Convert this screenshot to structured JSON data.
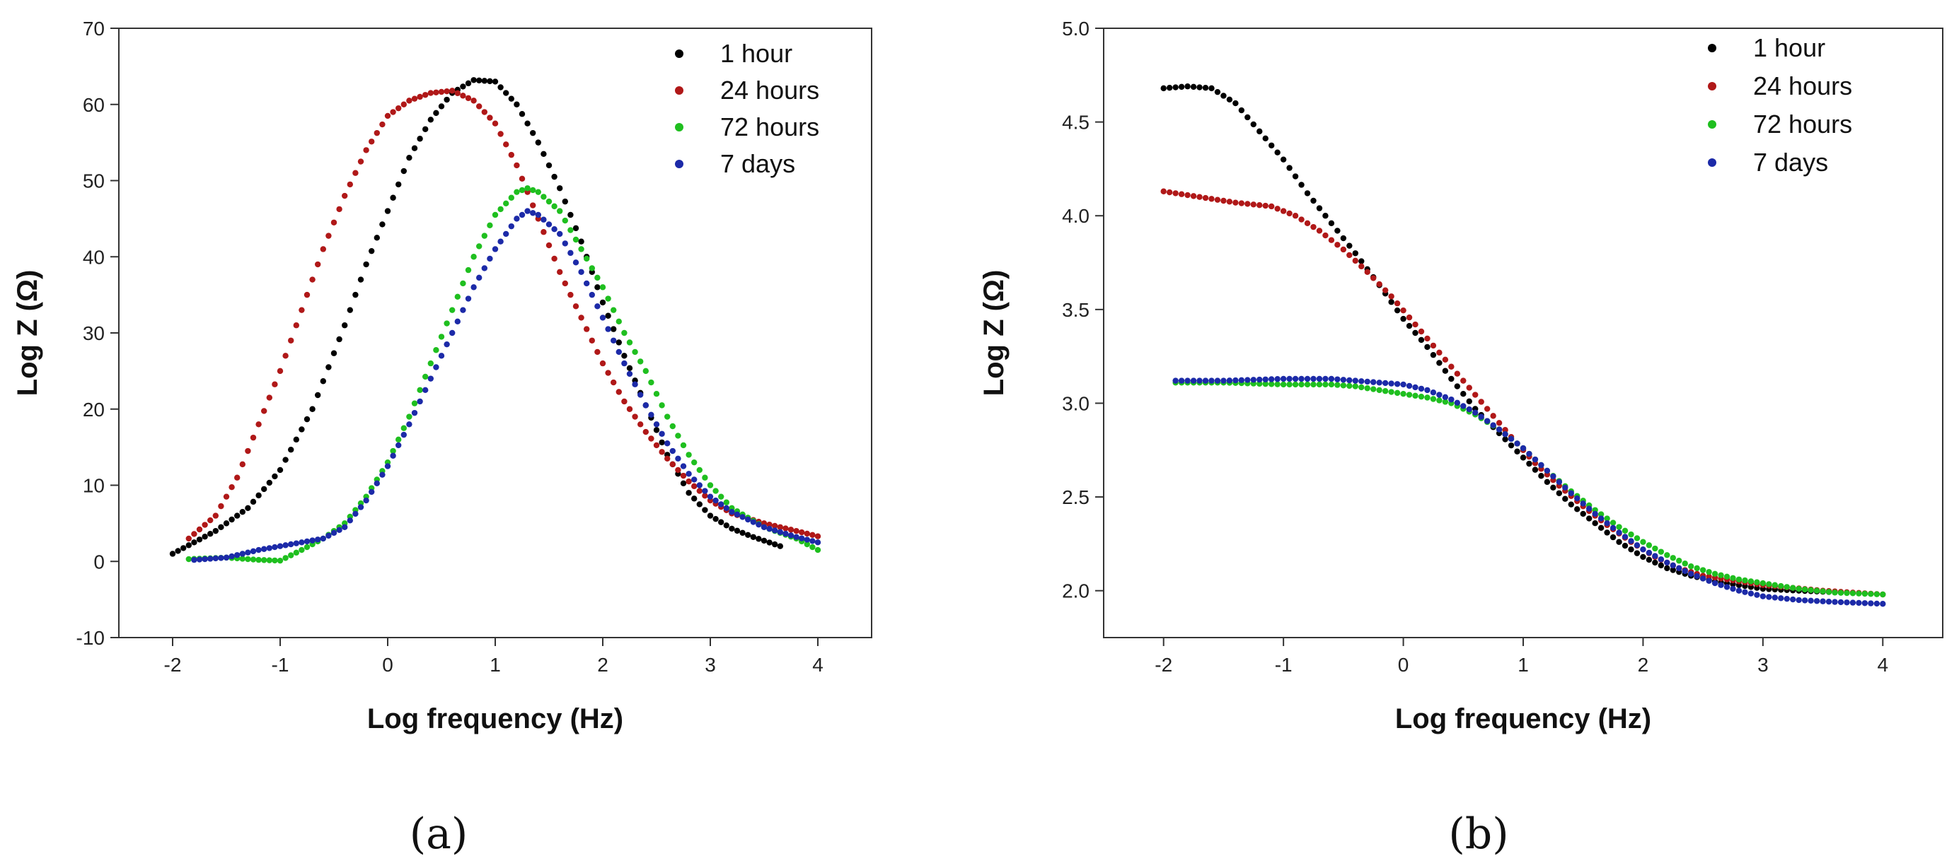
{
  "chart_data": [
    {
      "type": "scatter",
      "panel_label": "(a)",
      "xlabel": "Log frequency (Hz)",
      "ylabel": "Log Z (Ω)",
      "xlim": [
        -2.5,
        4.5
      ],
      "ylim": [
        -10,
        70
      ],
      "xticks": [
        -2,
        -1,
        0,
        1,
        2,
        3,
        4
      ],
      "yticks": [
        -10,
        0,
        10,
        20,
        30,
        40,
        50,
        60,
        70
      ],
      "legend_position": "top-right",
      "series": [
        {
          "name": "1 hour",
          "color": "#000000",
          "x_range": [
            -2.0,
            3.65
          ],
          "points": [
            [
              -2.0,
              1
            ],
            [
              -1.6,
              4
            ],
            [
              -1.3,
              7
            ],
            [
              -1.0,
              12
            ],
            [
              -0.7,
              20
            ],
            [
              -0.4,
              31
            ],
            [
              -0.2,
              39
            ],
            [
              0.0,
              46
            ],
            [
              0.2,
              53
            ],
            [
              0.4,
              58
            ],
            [
              0.6,
              61.5
            ],
            [
              0.8,
              63.2
            ],
            [
              1.0,
              63
            ],
            [
              1.2,
              60
            ],
            [
              1.4,
              55
            ],
            [
              1.6,
              49
            ],
            [
              1.8,
              42
            ],
            [
              2.0,
              34
            ],
            [
              2.2,
              27
            ],
            [
              2.4,
              20.5
            ],
            [
              2.6,
              14
            ],
            [
              2.8,
              9
            ],
            [
              3.0,
              6
            ],
            [
              3.2,
              4.3
            ],
            [
              3.4,
              3.2
            ],
            [
              3.65,
              2
            ]
          ]
        },
        {
          "name": "24 hours",
          "color": "#b01818",
          "x_range": [
            -1.85,
            4.0
          ],
          "points": [
            [
              -1.85,
              3
            ],
            [
              -1.6,
              6
            ],
            [
              -1.4,
              11
            ],
            [
              -1.2,
              18
            ],
            [
              -1.0,
              25
            ],
            [
              -0.8,
              33
            ],
            [
              -0.6,
              41
            ],
            [
              -0.4,
              48
            ],
            [
              -0.2,
              54
            ],
            [
              0.0,
              58.5
            ],
            [
              0.2,
              60.5
            ],
            [
              0.4,
              61.5
            ],
            [
              0.6,
              61.8
            ],
            [
              0.8,
              60.5
            ],
            [
              1.0,
              57.5
            ],
            [
              1.2,
              52
            ],
            [
              1.4,
              45
            ],
            [
              1.6,
              38
            ],
            [
              1.8,
              32
            ],
            [
              2.0,
              26
            ],
            [
              2.2,
              21
            ],
            [
              2.4,
              17
            ],
            [
              2.6,
              13.5
            ],
            [
              2.8,
              10.5
            ],
            [
              3.0,
              8
            ],
            [
              3.2,
              6.3
            ],
            [
              3.5,
              5
            ],
            [
              3.8,
              4
            ],
            [
              4.0,
              3.3
            ]
          ]
        },
        {
          "name": "72 hours",
          "color": "#1fbf1f",
          "x_range": [
            -1.85,
            4.0
          ],
          "points": [
            [
              -1.85,
              0.3
            ],
            [
              -1.5,
              0.5
            ],
            [
              -1.2,
              0.2
            ],
            [
              -1.0,
              0.1
            ],
            [
              -0.8,
              1.5
            ],
            [
              -0.6,
              3
            ],
            [
              -0.4,
              5
            ],
            [
              -0.2,
              8.5
            ],
            [
              0.0,
              13
            ],
            [
              0.2,
              19
            ],
            [
              0.4,
              26
            ],
            [
              0.6,
              33
            ],
            [
              0.8,
              40
            ],
            [
              1.0,
              45.5
            ],
            [
              1.2,
              48.5
            ],
            [
              1.3,
              49
            ],
            [
              1.4,
              48.5
            ],
            [
              1.6,
              46
            ],
            [
              1.8,
              41
            ],
            [
              2.0,
              36
            ],
            [
              2.2,
              30
            ],
            [
              2.4,
              25
            ],
            [
              2.6,
              19
            ],
            [
              2.8,
              14
            ],
            [
              3.0,
              10
            ],
            [
              3.2,
              7
            ],
            [
              3.5,
              4.5
            ],
            [
              3.8,
              3
            ],
            [
              4.0,
              1.5
            ]
          ]
        },
        {
          "name": "7 days",
          "color": "#1c2aa8",
          "x_range": [
            -1.8,
            4.0
          ],
          "points": [
            [
              -1.8,
              0.2
            ],
            [
              -1.5,
              0.5
            ],
            [
              -1.2,
              1.5
            ],
            [
              -1.0,
              2
            ],
            [
              -0.8,
              2.5
            ],
            [
              -0.6,
              3
            ],
            [
              -0.4,
              4.5
            ],
            [
              -0.2,
              8
            ],
            [
              0.0,
              12.5
            ],
            [
              0.2,
              18
            ],
            [
              0.4,
              24
            ],
            [
              0.6,
              30
            ],
            [
              0.8,
              36
            ],
            [
              1.0,
              41
            ],
            [
              1.2,
              45
            ],
            [
              1.3,
              46
            ],
            [
              1.4,
              45.5
            ],
            [
              1.6,
              43
            ],
            [
              1.8,
              38
            ],
            [
              2.0,
              32
            ],
            [
              2.2,
              26
            ],
            [
              2.4,
              20.5
            ],
            [
              2.6,
              15.5
            ],
            [
              2.8,
              11.5
            ],
            [
              3.0,
              8.5
            ],
            [
              3.2,
              6.5
            ],
            [
              3.5,
              4.5
            ],
            [
              3.8,
              3.2
            ],
            [
              4.0,
              2.5
            ]
          ]
        }
      ]
    },
    {
      "type": "scatter",
      "panel_label": "(b)",
      "xlabel": "Log frequency (Hz)",
      "ylabel": "Log Z (Ω)",
      "xlim": [
        -2.5,
        4.5
      ],
      "ylim": [
        1.75,
        5.0
      ],
      "xticks": [
        -2,
        -1,
        0,
        1,
        2,
        3,
        4
      ],
      "yticks": [
        2.0,
        2.5,
        3.0,
        3.5,
        4.0,
        4.5,
        5.0
      ],
      "tick_decimals": 1,
      "legend_position": "top-right",
      "series": [
        {
          "name": "1 hour",
          "color": "#000000",
          "x_range": [
            -2.0,
            3.65
          ],
          "points": [
            [
              -2.0,
              4.68
            ],
            [
              -1.8,
              4.69
            ],
            [
              -1.6,
              4.68
            ],
            [
              -1.4,
              4.6
            ],
            [
              -1.2,
              4.45
            ],
            [
              -1.0,
              4.3
            ],
            [
              -0.8,
              4.12
            ],
            [
              -0.6,
              3.96
            ],
            [
              -0.4,
              3.8
            ],
            [
              -0.2,
              3.63
            ],
            [
              0.0,
              3.45
            ],
            [
              0.2,
              3.3
            ],
            [
              0.4,
              3.13
            ],
            [
              0.6,
              2.97
            ],
            [
              0.8,
              2.84
            ],
            [
              1.0,
              2.71
            ],
            [
              1.2,
              2.58
            ],
            [
              1.4,
              2.46
            ],
            [
              1.6,
              2.36
            ],
            [
              1.8,
              2.26
            ],
            [
              2.0,
              2.18
            ],
            [
              2.2,
              2.12
            ],
            [
              2.4,
              2.08
            ],
            [
              2.6,
              2.05
            ],
            [
              2.8,
              2.03
            ],
            [
              3.0,
              2.01
            ],
            [
              3.3,
              2.0
            ],
            [
              3.65,
              1.99
            ]
          ]
        },
        {
          "name": "24 hours",
          "color": "#b01818",
          "x_range": [
            -2.0,
            4.0
          ],
          "points": [
            [
              -2.0,
              4.13
            ],
            [
              -1.7,
              4.1
            ],
            [
              -1.4,
              4.07
            ],
            [
              -1.1,
              4.05
            ],
            [
              -0.9,
              4.0
            ],
            [
              -0.7,
              3.92
            ],
            [
              -0.5,
              3.82
            ],
            [
              -0.3,
              3.7
            ],
            [
              -0.1,
              3.57
            ],
            [
              0.1,
              3.42
            ],
            [
              0.3,
              3.27
            ],
            [
              0.5,
              3.12
            ],
            [
              0.7,
              2.97
            ],
            [
              0.9,
              2.82
            ],
            [
              1.1,
              2.68
            ],
            [
              1.3,
              2.56
            ],
            [
              1.5,
              2.45
            ],
            [
              1.7,
              2.35
            ],
            [
              1.9,
              2.26
            ],
            [
              2.1,
              2.18
            ],
            [
              2.3,
              2.12
            ],
            [
              2.5,
              2.08
            ],
            [
              2.8,
              2.05
            ],
            [
              3.0,
              2.03
            ],
            [
              3.5,
              2.0
            ],
            [
              4.0,
              1.98
            ]
          ]
        },
        {
          "name": "72 hours",
          "color": "#1fbf1f",
          "x_range": [
            -1.9,
            4.0
          ],
          "points": [
            [
              -1.9,
              3.11
            ],
            [
              -1.5,
              3.11
            ],
            [
              -1.0,
              3.1
            ],
            [
              -0.6,
              3.1
            ],
            [
              -0.4,
              3.09
            ],
            [
              -0.2,
              3.07
            ],
            [
              0.0,
              3.05
            ],
            [
              0.2,
              3.03
            ],
            [
              0.4,
              3.0
            ],
            [
              0.6,
              2.94
            ],
            [
              0.8,
              2.86
            ],
            [
              1.0,
              2.76
            ],
            [
              1.2,
              2.64
            ],
            [
              1.4,
              2.53
            ],
            [
              1.6,
              2.43
            ],
            [
              1.8,
              2.34
            ],
            [
              2.0,
              2.26
            ],
            [
              2.2,
              2.19
            ],
            [
              2.4,
              2.13
            ],
            [
              2.6,
              2.09
            ],
            [
              2.8,
              2.06
            ],
            [
              3.0,
              2.04
            ],
            [
              3.3,
              2.01
            ],
            [
              3.6,
              1.99
            ],
            [
              4.0,
              1.98
            ]
          ]
        },
        {
          "name": "7 days",
          "color": "#1c2aa8",
          "x_range": [
            -1.9,
            4.0
          ],
          "points": [
            [
              -1.9,
              3.12
            ],
            [
              -1.5,
              3.12
            ],
            [
              -1.0,
              3.13
            ],
            [
              -0.6,
              3.13
            ],
            [
              -0.4,
              3.12
            ],
            [
              -0.2,
              3.11
            ],
            [
              0.0,
              3.1
            ],
            [
              0.2,
              3.07
            ],
            [
              0.4,
              3.02
            ],
            [
              0.6,
              2.95
            ],
            [
              0.8,
              2.86
            ],
            [
              1.0,
              2.76
            ],
            [
              1.2,
              2.64
            ],
            [
              1.4,
              2.52
            ],
            [
              1.6,
              2.41
            ],
            [
              1.8,
              2.31
            ],
            [
              2.0,
              2.22
            ],
            [
              2.2,
              2.15
            ],
            [
              2.4,
              2.09
            ],
            [
              2.6,
              2.04
            ],
            [
              2.8,
              2.0
            ],
            [
              3.0,
              1.97
            ],
            [
              3.3,
              1.95
            ],
            [
              3.6,
              1.94
            ],
            [
              4.0,
              1.93
            ]
          ]
        }
      ]
    }
  ]
}
